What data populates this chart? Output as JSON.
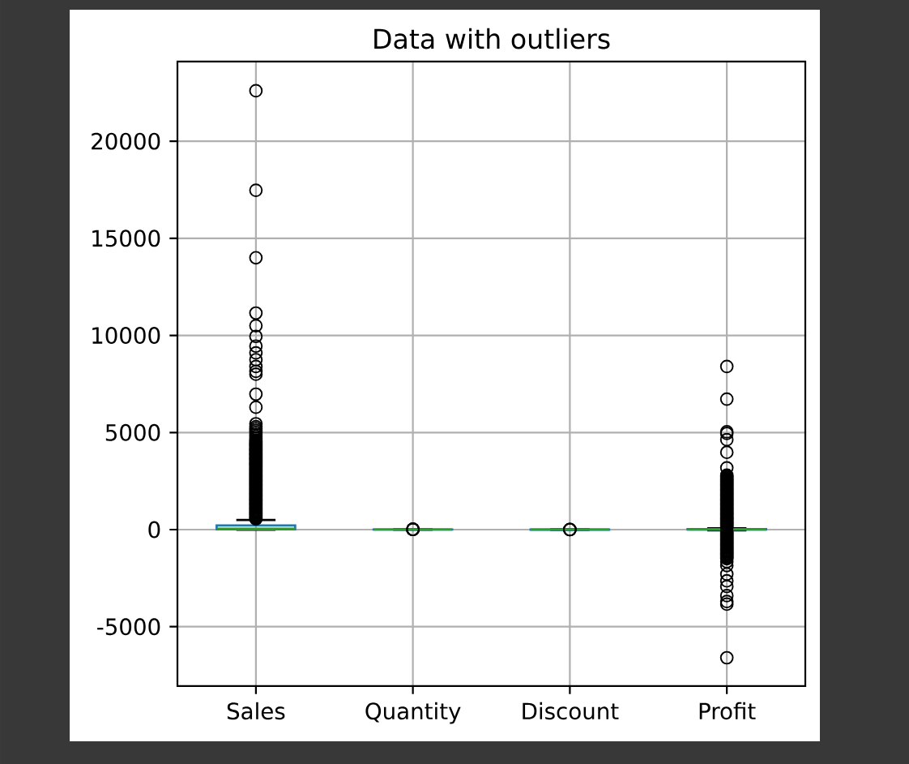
{
  "chart_data": {
    "type": "box",
    "title": "Data with outliers",
    "categories": [
      "Sales",
      "Quantity",
      "Discount",
      "Profit"
    ],
    "color": "#1f77b4",
    "boxes": [
      {
        "low": 0,
        "q1": 20,
        "median": 50,
        "q3": 210,
        "high": 500,
        "outliers": [
          550,
          600,
          650,
          700,
          750,
          800,
          850,
          900,
          950,
          1000,
          1050,
          1100,
          1150,
          1200,
          1250,
          1300,
          1350,
          1400,
          1450,
          1500,
          1550,
          1600,
          1650,
          1700,
          1750,
          1800,
          1850,
          1900,
          1950,
          2000,
          2050,
          2100,
          2150,
          2200,
          2250,
          2300,
          2350,
          2400,
          2450,
          2500,
          2550,
          2600,
          2650,
          2700,
          2750,
          2800,
          2850,
          2900,
          2950,
          3000,
          3050,
          3100,
          3150,
          3200,
          3250,
          3300,
          3350,
          3400,
          3450,
          3500,
          3550,
          3600,
          3650,
          3700,
          3750,
          3800,
          3850,
          3900,
          3950,
          4000,
          4050,
          4100,
          4150,
          4200,
          4250,
          4300,
          4350,
          4400,
          4450,
          4500,
          4550,
          4600,
          4700,
          4800,
          4900,
          5000,
          5100,
          5200,
          5300,
          5450,
          6300,
          6975,
          8000,
          8150,
          8400,
          8750,
          9100,
          9450,
          9950,
          10500,
          11150,
          14000,
          17475,
          22600
        ]
      },
      {
        "low": 1,
        "q1": 2,
        "median": 3,
        "q3": 5,
        "high": 9,
        "outliers": [
          10,
          11,
          12,
          13,
          14
        ]
      },
      {
        "low": 0,
        "q1": 0,
        "median": 0.2,
        "q3": 0.2,
        "high": 0.5,
        "outliers": [
          0.6,
          0.7,
          0.8
        ]
      },
      {
        "low": -40,
        "q1": 2,
        "median": 9,
        "q3": 29,
        "high": 71,
        "outliers": [
          100,
          150,
          200,
          250,
          300,
          350,
          400,
          450,
          500,
          550,
          600,
          650,
          700,
          750,
          800,
          850,
          900,
          950,
          1000,
          1050,
          1100,
          1150,
          1200,
          1250,
          1300,
          1350,
          1400,
          1450,
          1500,
          1550,
          1600,
          1650,
          1700,
          1750,
          1800,
          1850,
          1900,
          1950,
          2000,
          2050,
          2100,
          2150,
          2200,
          2250,
          2300,
          2350,
          2400,
          2450,
          2500,
          2550,
          2600,
          2650,
          2700,
          2750,
          2800,
          3180,
          3980,
          4630,
          4950,
          5040,
          6720,
          8400,
          -100,
          -150,
          -200,
          -250,
          -300,
          -350,
          -400,
          -450,
          -500,
          -550,
          -600,
          -650,
          -700,
          -750,
          -800,
          -850,
          -900,
          -950,
          -1000,
          -1050,
          -1100,
          -1150,
          -1200,
          -1250,
          -1300,
          -1350,
          -1400,
          -1450,
          -1500,
          -1650,
          -1850,
          -2290,
          -2640,
          -2930,
          -3400,
          -3700,
          -3840,
          -6600
        ]
      }
    ],
    "ylim": [
      -8060,
      24100
    ],
    "yticks": [
      -5000,
      0,
      5000,
      10000,
      15000,
      20000
    ],
    "grid": true,
    "marker": "circle"
  }
}
